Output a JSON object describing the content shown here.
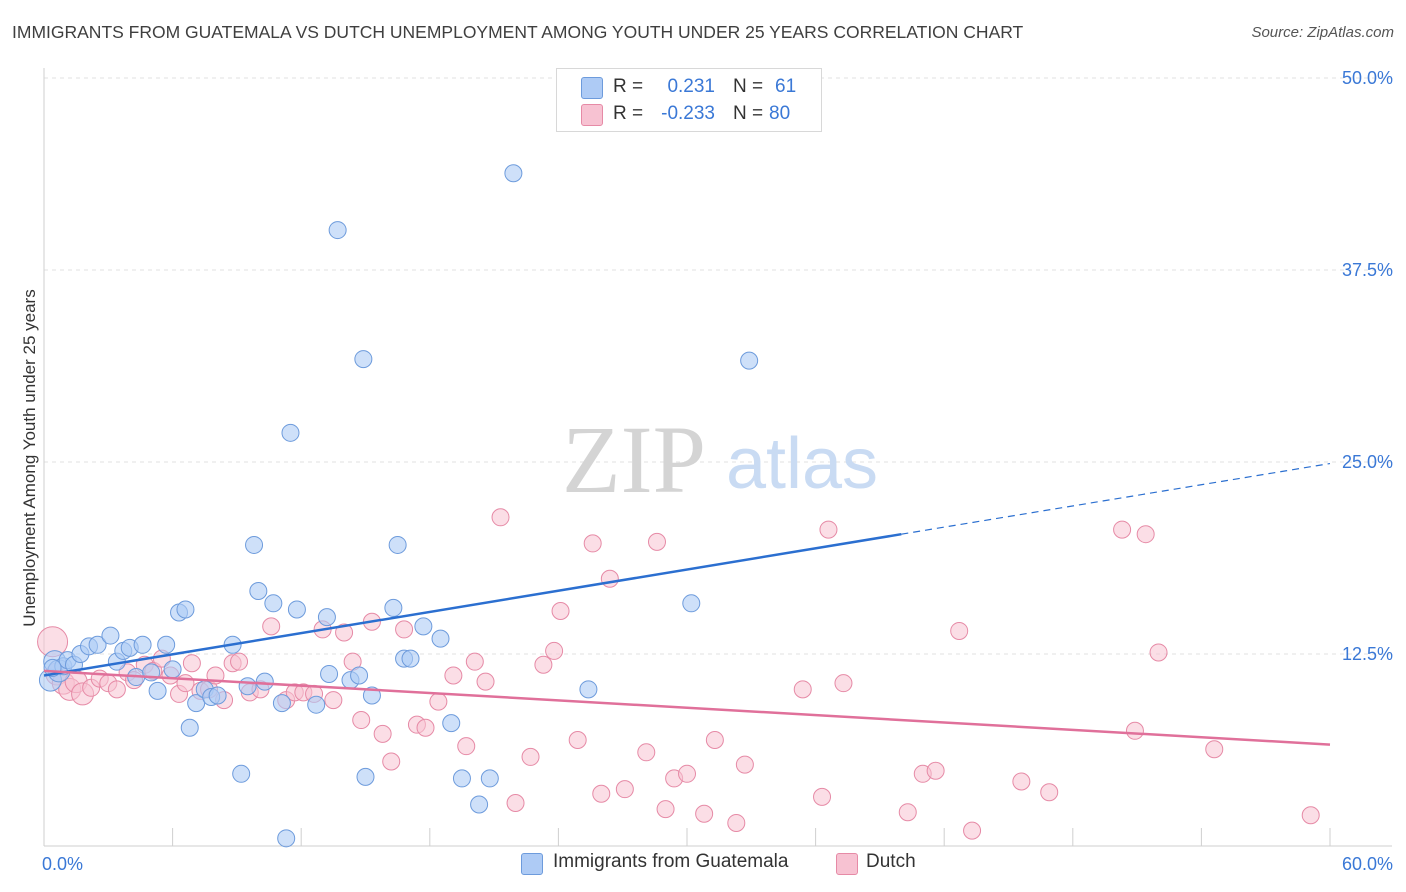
{
  "header": {
    "title": "IMMIGRANTS FROM GUATEMALA VS DUTCH UNEMPLOYMENT AMONG YOUTH UNDER 25 YEARS CORRELATION CHART",
    "source": "Source: ZipAtlas.com"
  },
  "watermark": {
    "zip": "ZIP",
    "atlas": "atlas"
  },
  "legend": {
    "r_label": "R =",
    "n_label": "N =",
    "rows": [
      {
        "r": "0.231",
        "n": "61"
      },
      {
        "r": "-0.233",
        "n": "80"
      }
    ]
  },
  "colors": {
    "blue_fill": "#aecbf5",
    "blue_stroke": "#6d9bdc",
    "blue_line": "#2b6fd0",
    "pink_fill": "#f7c2d2",
    "pink_stroke": "#e68aa6",
    "pink_line": "#e0709a",
    "value_text": "#3a78d6",
    "grid": "#e2e2e2"
  },
  "chart_data": {
    "type": "scatter",
    "title": "IMMIGRANTS FROM GUATEMALA VS DUTCH UNEMPLOYMENT AMONG YOUTH UNDER 25 YEARS CORRELATION CHART",
    "xlabel": "",
    "ylabel": "Unemployment Among Youth under 25 years",
    "xlim": [
      0,
      60
    ],
    "ylim": [
      0,
      50
    ],
    "x_tick_labels": [
      "0.0%",
      "60.0%"
    ],
    "y_tick_labels": [
      "12.5%",
      "25.0%",
      "37.5%",
      "50.0%"
    ],
    "y_ticks": [
      12.5,
      25,
      37.5,
      50
    ],
    "grid": "horizontal dashed",
    "legend_position": "top-center",
    "series": [
      {
        "name": "Immigrants from Guatemala",
        "color": "#aecbf5",
        "R": 0.231,
        "N": 61,
        "trend": {
          "x0": 0,
          "y0": 11.1,
          "x1": 40,
          "y1": 20.3,
          "dash_to_x": 60,
          "dash_to_y": 24.9
        },
        "points": [
          [
            0.3,
            10.8
          ],
          [
            0.5,
            12.0
          ],
          [
            0.7,
            11.4
          ],
          [
            0.9,
            11.7
          ],
          [
            1.1,
            12.1
          ],
          [
            1.4,
            11.8
          ],
          [
            1.7,
            12.5
          ],
          [
            2.1,
            13.0
          ],
          [
            2.5,
            13.1
          ],
          [
            3.1,
            13.7
          ],
          [
            3.4,
            12.0
          ],
          [
            3.7,
            12.7
          ],
          [
            4.0,
            12.9
          ],
          [
            4.3,
            11.0
          ],
          [
            4.6,
            13.1
          ],
          [
            5.0,
            11.3
          ],
          [
            5.3,
            10.1
          ],
          [
            5.7,
            13.1
          ],
          [
            6.0,
            11.5
          ],
          [
            6.3,
            15.2
          ],
          [
            6.6,
            15.4
          ],
          [
            6.8,
            7.7
          ],
          [
            7.1,
            9.3
          ],
          [
            7.5,
            10.2
          ],
          [
            7.8,
            9.7
          ],
          [
            8.1,
            9.8
          ],
          [
            8.8,
            13.1
          ],
          [
            9.2,
            4.7
          ],
          [
            9.5,
            10.4
          ],
          [
            9.8,
            19.6
          ],
          [
            10.0,
            16.6
          ],
          [
            10.3,
            10.7
          ],
          [
            10.7,
            15.8
          ],
          [
            11.1,
            9.3
          ],
          [
            11.3,
            0.5
          ],
          [
            11.5,
            26.9
          ],
          [
            11.8,
            15.4
          ],
          [
            12.7,
            9.2
          ],
          [
            13.2,
            14.9
          ],
          [
            13.3,
            11.2
          ],
          [
            13.7,
            40.1
          ],
          [
            14.3,
            10.8
          ],
          [
            14.7,
            11.1
          ],
          [
            14.9,
            31.7
          ],
          [
            15.0,
            4.5
          ],
          [
            15.3,
            9.8
          ],
          [
            16.3,
            15.5
          ],
          [
            16.5,
            19.6
          ],
          [
            16.8,
            12.2
          ],
          [
            17.1,
            12.2
          ],
          [
            17.7,
            14.3
          ],
          [
            18.5,
            13.5
          ],
          [
            19.0,
            8.0
          ],
          [
            19.5,
            4.4
          ],
          [
            20.3,
            2.7
          ],
          [
            20.8,
            4.4
          ],
          [
            21.9,
            43.8
          ],
          [
            25.4,
            10.2
          ],
          [
            30.2,
            15.8
          ],
          [
            32.9,
            31.6
          ],
          [
            0.4,
            11.6
          ]
        ]
      },
      {
        "name": "Dutch",
        "color": "#f7c2d2",
        "R": -0.233,
        "N": 80,
        "trend": {
          "x0": 0,
          "y0": 11.4,
          "x1": 60,
          "y1": 6.6
        },
        "points": [
          [
            0.4,
            13.3
          ],
          [
            0.6,
            11.2
          ],
          [
            0.9,
            10.6
          ],
          [
            1.2,
            10.2
          ],
          [
            1.5,
            10.7
          ],
          [
            1.8,
            9.9
          ],
          [
            2.2,
            10.3
          ],
          [
            2.6,
            10.9
          ],
          [
            3.0,
            10.6
          ],
          [
            3.4,
            10.2
          ],
          [
            3.9,
            11.3
          ],
          [
            4.2,
            10.8
          ],
          [
            4.7,
            11.8
          ],
          [
            5.1,
            11.4
          ],
          [
            5.5,
            12.2
          ],
          [
            5.9,
            11.1
          ],
          [
            6.3,
            9.9
          ],
          [
            6.6,
            10.6
          ],
          [
            6.9,
            11.9
          ],
          [
            7.3,
            10.1
          ],
          [
            7.7,
            10.2
          ],
          [
            8.0,
            11.1
          ],
          [
            8.4,
            9.5
          ],
          [
            8.8,
            11.9
          ],
          [
            9.1,
            12.0
          ],
          [
            9.6,
            10.0
          ],
          [
            10.1,
            10.2
          ],
          [
            10.6,
            14.3
          ],
          [
            11.3,
            9.5
          ],
          [
            11.7,
            10.0
          ],
          [
            12.1,
            10.0
          ],
          [
            12.6,
            9.9
          ],
          [
            13.0,
            14.1
          ],
          [
            13.5,
            9.5
          ],
          [
            14.0,
            13.9
          ],
          [
            14.4,
            12.0
          ],
          [
            14.8,
            8.2
          ],
          [
            15.3,
            14.6
          ],
          [
            15.8,
            7.3
          ],
          [
            16.2,
            5.5
          ],
          [
            16.8,
            14.1
          ],
          [
            17.4,
            7.9
          ],
          [
            17.8,
            7.7
          ],
          [
            18.4,
            9.4
          ],
          [
            19.1,
            11.1
          ],
          [
            19.7,
            6.5
          ],
          [
            20.1,
            12.0
          ],
          [
            20.6,
            10.7
          ],
          [
            21.3,
            21.4
          ],
          [
            22.0,
            2.8
          ],
          [
            22.7,
            5.8
          ],
          [
            23.3,
            11.8
          ],
          [
            23.8,
            12.7
          ],
          [
            24.1,
            15.3
          ],
          [
            24.9,
            6.9
          ],
          [
            25.6,
            19.7
          ],
          [
            26.0,
            3.4
          ],
          [
            26.4,
            17.4
          ],
          [
            27.1,
            3.7
          ],
          [
            28.1,
            6.1
          ],
          [
            28.6,
            19.8
          ],
          [
            29.0,
            2.4
          ],
          [
            29.4,
            4.4
          ],
          [
            30.0,
            4.7
          ],
          [
            30.8,
            2.1
          ],
          [
            31.3,
            6.9
          ],
          [
            32.3,
            1.5
          ],
          [
            32.7,
            5.3
          ],
          [
            35.4,
            10.2
          ],
          [
            36.3,
            3.2
          ],
          [
            36.6,
            20.6
          ],
          [
            37.3,
            10.6
          ],
          [
            40.3,
            2.2
          ],
          [
            41.0,
            4.7
          ],
          [
            41.6,
            4.9
          ],
          [
            42.7,
            14.0
          ],
          [
            43.3,
            1.0
          ],
          [
            45.6,
            4.2
          ],
          [
            46.9,
            3.5
          ],
          [
            50.3,
            20.6
          ]
        ]
      }
    ],
    "extra_points_dutch": [
      [
        50.9,
        7.5
      ],
      [
        51.4,
        20.3
      ],
      [
        52.0,
        12.6
      ],
      [
        54.6,
        6.3
      ],
      [
        59.1,
        2.0
      ]
    ]
  },
  "axis": {
    "x_left": "0.0%",
    "x_right": "60.0%",
    "y_labels": [
      "50.0%",
      "37.5%",
      "25.0%",
      "12.5%"
    ]
  },
  "bottom_legend": {
    "blue": "Immigrants from Guatemala",
    "pink": "Dutch"
  }
}
